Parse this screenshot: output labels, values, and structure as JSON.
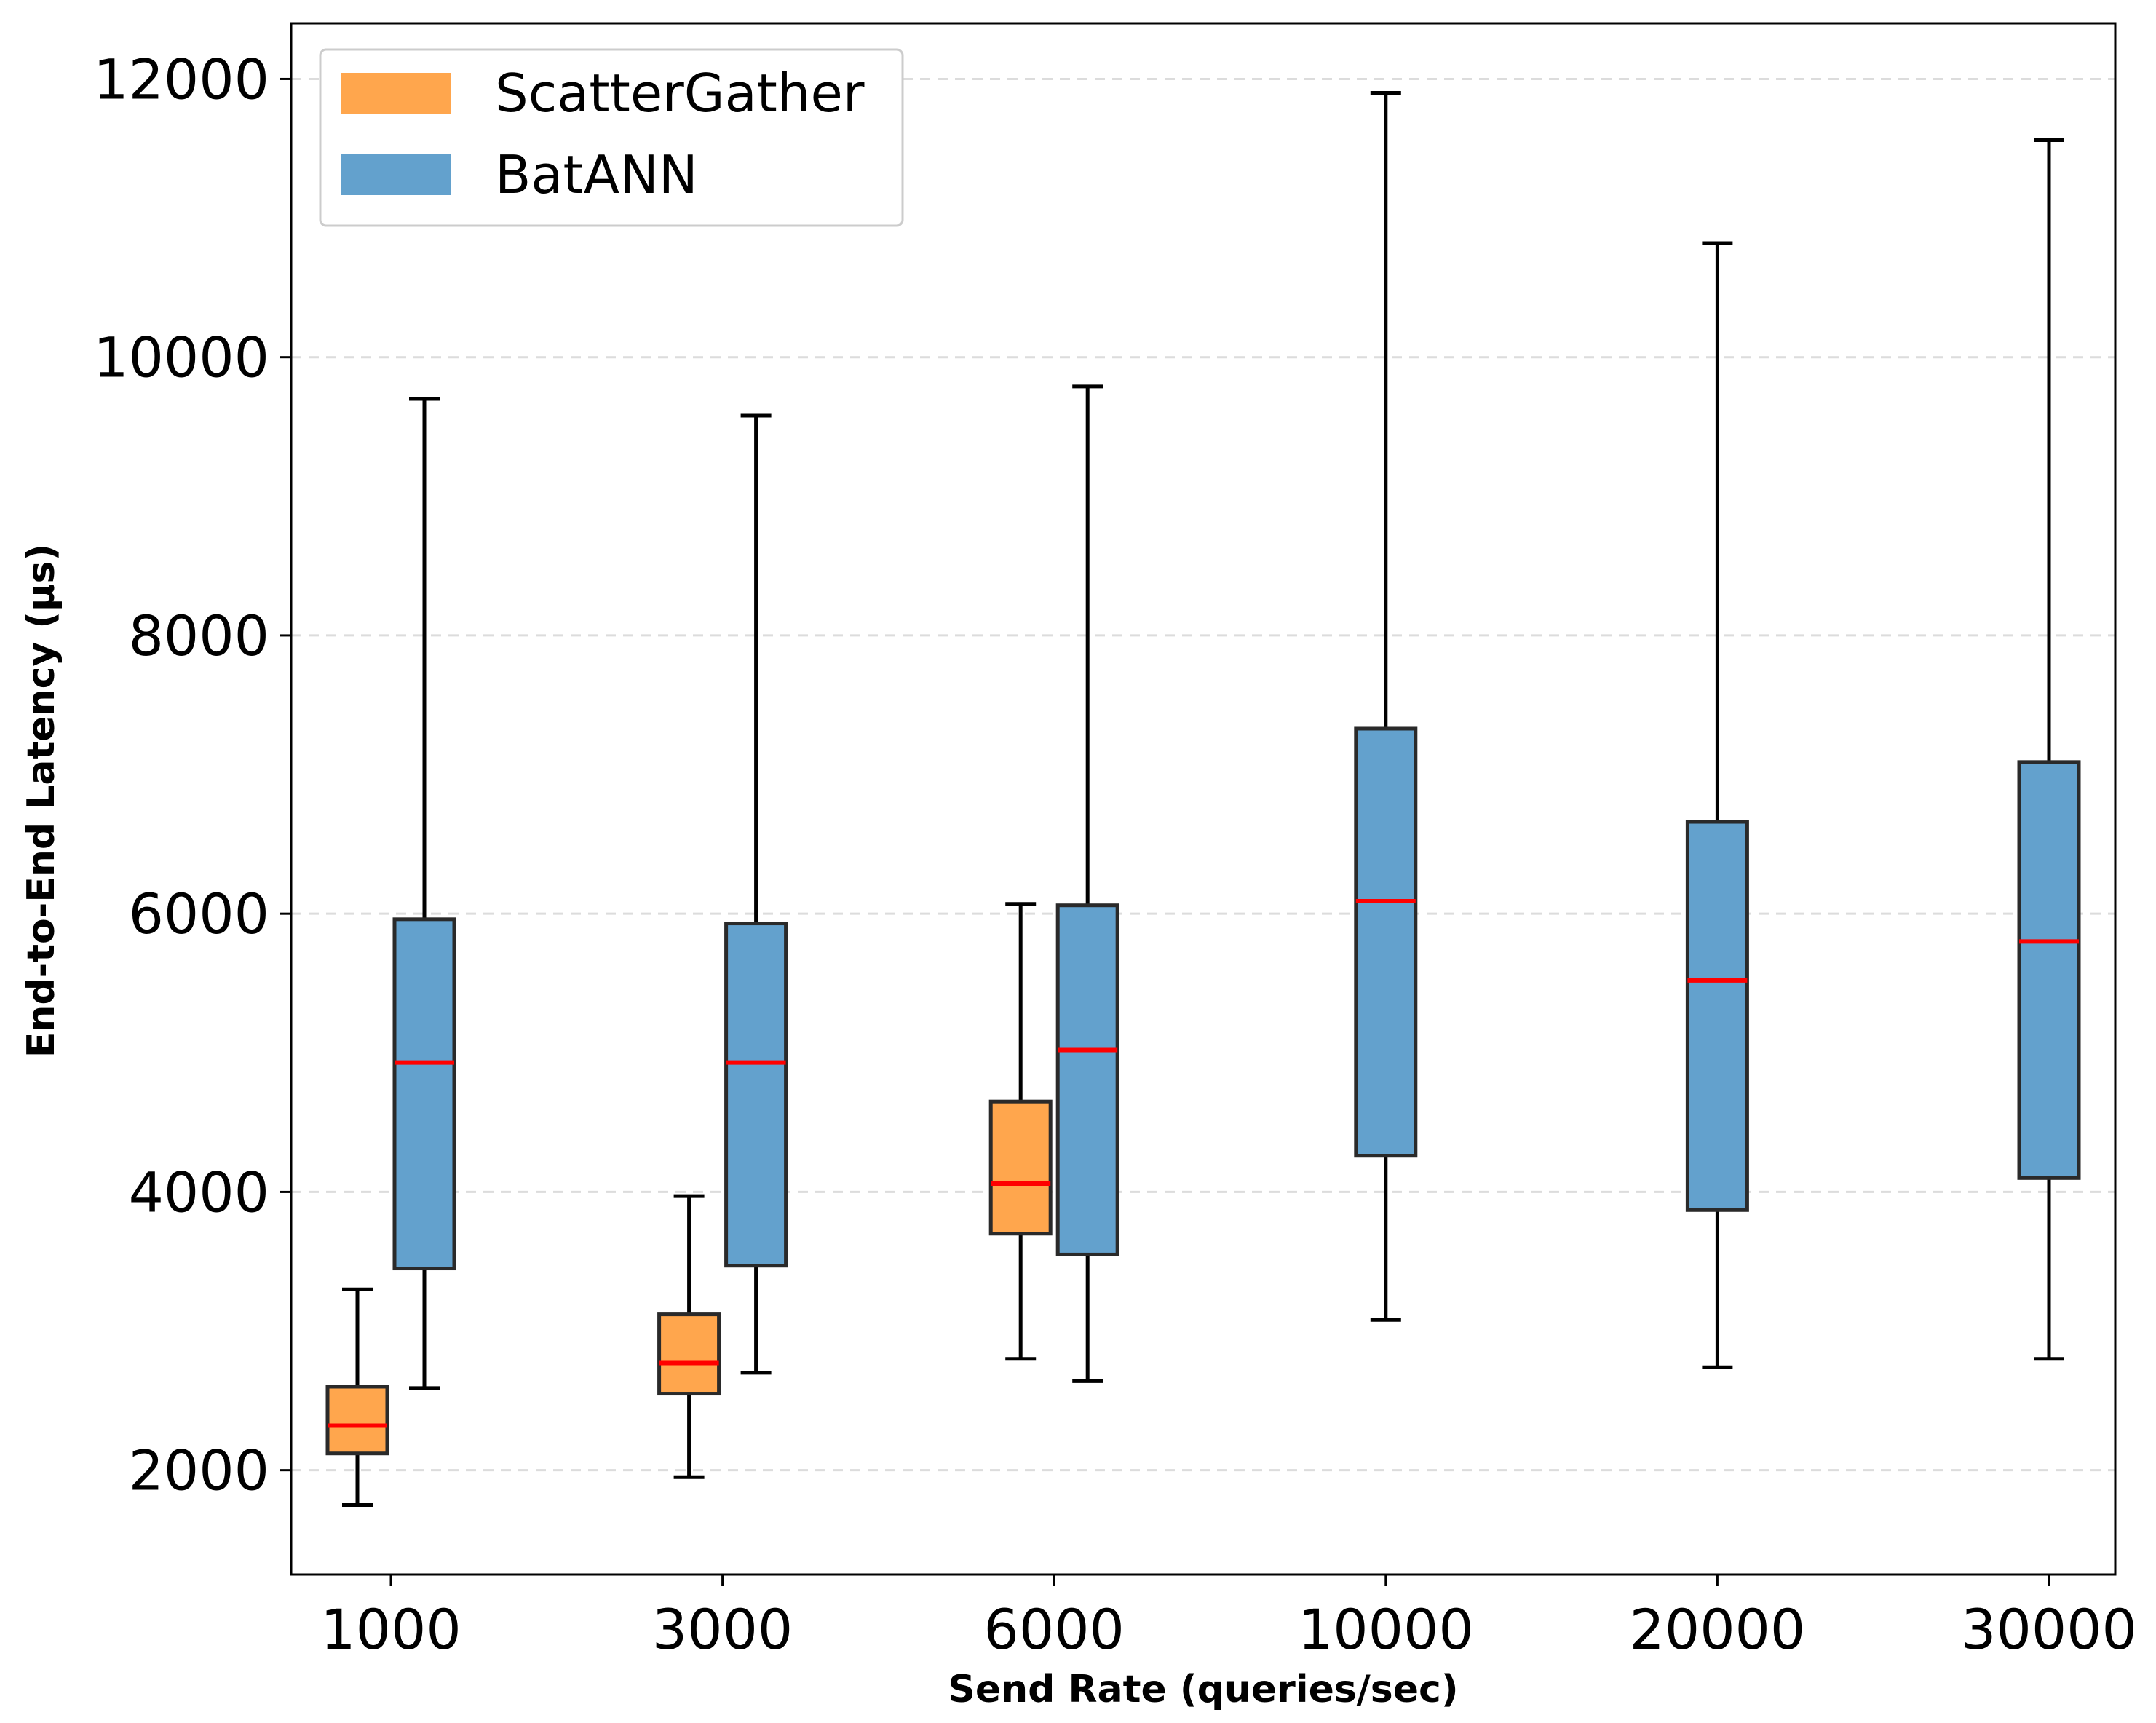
{
  "chart_data": {
    "type": "box",
    "title": "",
    "xlabel": "Send Rate (queries/sec)",
    "ylabel": "End-to-End Latency (μs)",
    "ylim": [
      1250,
      12400
    ],
    "yticks": [
      2000,
      4000,
      6000,
      8000,
      10000,
      12000
    ],
    "grid": "horizontal-dashed",
    "legend_position": "top-left",
    "categories": [
      "1000",
      "3000",
      "6000",
      "10000",
      "20000",
      "30000"
    ],
    "series": [
      {
        "name": "ScatterGather",
        "color": "#ffa64d",
        "boxes": [
          {
            "category": "1000",
            "whisker_low": 1750,
            "q1": 2120,
            "median": 2320,
            "q3": 2600,
            "whisker_high": 3300
          },
          {
            "category": "3000",
            "whisker_low": 1950,
            "q1": 2550,
            "median": 2770,
            "q3": 3120,
            "whisker_high": 3970
          },
          {
            "category": "6000",
            "whisker_low": 2800,
            "q1": 3700,
            "median": 4060,
            "q3": 4650,
            "whisker_high": 6070
          }
        ]
      },
      {
        "name": "BatANN",
        "color": "#63a1cd",
        "boxes": [
          {
            "category": "1000",
            "whisker_low": 2590,
            "q1": 3450,
            "median": 4930,
            "q3": 5960,
            "whisker_high": 9700
          },
          {
            "category": "3000",
            "whisker_low": 2700,
            "q1": 3470,
            "median": 4930,
            "q3": 5930,
            "whisker_high": 9580
          },
          {
            "category": "6000",
            "whisker_low": 2640,
            "q1": 3550,
            "median": 5020,
            "q3": 6060,
            "whisker_high": 9790
          },
          {
            "category": "10000",
            "whisker_low": 3080,
            "q1": 4260,
            "median": 6090,
            "q3": 7330,
            "whisker_high": 11900
          },
          {
            "category": "20000",
            "whisker_low": 2740,
            "q1": 3870,
            "median": 5520,
            "q3": 6660,
            "whisker_high": 10820
          },
          {
            "category": "30000",
            "whisker_low": 2800,
            "q1": 4100,
            "median": 5800,
            "q3": 7090,
            "whisker_high": 11560
          }
        ]
      }
    ]
  }
}
